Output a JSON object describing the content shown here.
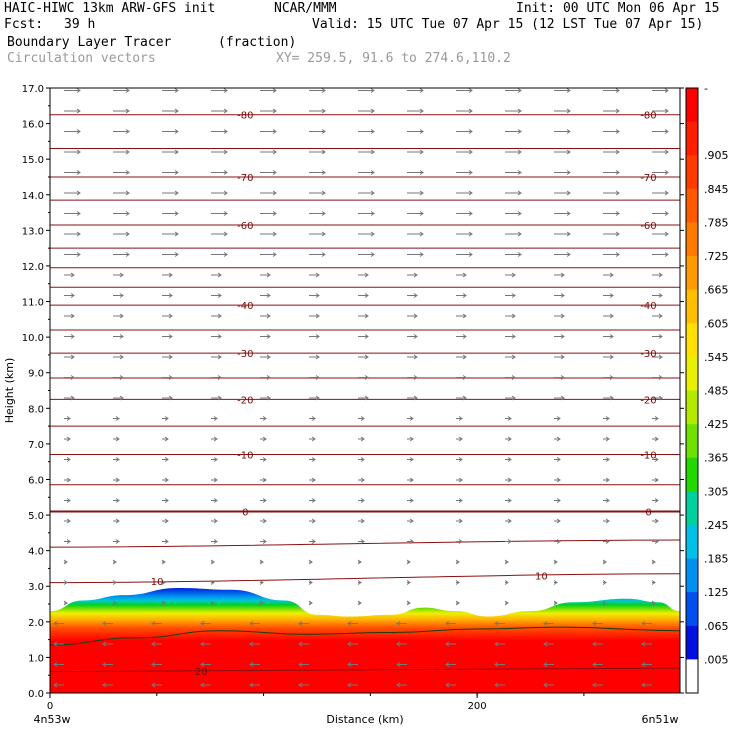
{
  "header": {
    "model": "HAIC-HIWC 13km ARW-GFS init",
    "org": "NCAR/MMM",
    "init": "Init: 00 UTC Mon 06 Apr 15",
    "fcst_label": "Fcst:",
    "fcst_value": "39 h",
    "valid": "Valid: 15 UTC Tue 07 Apr 15 (12 LST Tue 07 Apr 15)",
    "field": "Boundary Layer Tracer",
    "units": "(fraction)",
    "vectors": "Circulation vectors",
    "xy": "XY= 259.5, 91.6 to 274.6,110.2"
  },
  "chart_data": {
    "type": "heatmap",
    "title": "Boundary Layer Tracer",
    "xlabel": "Distance (km)",
    "ylabel": "Height (km)",
    "xlim": [
      0,
      295
    ],
    "ylim": [
      0,
      17
    ],
    "x_ticks": [
      {
        "value": 0,
        "label": "0"
      },
      {
        "value": 200,
        "label": "200"
      }
    ],
    "x_end_labels": {
      "left": "4n53w",
      "right": "6n51w"
    },
    "y_ticks": [
      "0.0",
      "1.0",
      "2.0",
      "3.0",
      "4.0",
      "5.0",
      "6.0",
      "7.0",
      "8.0",
      "9.0",
      "10.0",
      "11.0",
      "12.0",
      "13.0",
      "14.0",
      "15.0",
      "16.0",
      "17.0"
    ],
    "colorbar": {
      "labels": [
        "-",
        ".905",
        ".845",
        ".785",
        ".725",
        ".665",
        ".605",
        ".545",
        ".485",
        ".425",
        ".365",
        ".305",
        ".245",
        ".185",
        ".125",
        ".065",
        ".005"
      ],
      "colors": [
        "#ff0000",
        "#ff1e00",
        "#ff3c00",
        "#ff5a00",
        "#ff7a00",
        "#ff9a00",
        "#ffbe00",
        "#ffe000",
        "#e8f000",
        "#b4ea00",
        "#70e000",
        "#22d800",
        "#00d0a0",
        "#00c0e8",
        "#0090f0",
        "#0050f0",
        "#0010e0",
        "#ffffff"
      ]
    },
    "tracer_top_km": [
      {
        "x": 0,
        "y": 2.3
      },
      {
        "x": 15,
        "y": 2.6
      },
      {
        "x": 35,
        "y": 2.75
      },
      {
        "x": 60,
        "y": 2.95
      },
      {
        "x": 85,
        "y": 2.9
      },
      {
        "x": 110,
        "y": 2.6
      },
      {
        "x": 125,
        "y": 2.2
      },
      {
        "x": 140,
        "y": 2.15
      },
      {
        "x": 160,
        "y": 2.2
      },
      {
        "x": 175,
        "y": 2.4
      },
      {
        "x": 190,
        "y": 2.3
      },
      {
        "x": 205,
        "y": 2.15
      },
      {
        "x": 225,
        "y": 2.3
      },
      {
        "x": 245,
        "y": 2.55
      },
      {
        "x": 270,
        "y": 2.65
      },
      {
        "x": 285,
        "y": 2.55
      },
      {
        "x": 295,
        "y": 2.3
      }
    ],
    "mixed_top_km": [
      {
        "x": 0,
        "y": 1.35
      },
      {
        "x": 40,
        "y": 1.55
      },
      {
        "x": 80,
        "y": 1.75
      },
      {
        "x": 120,
        "y": 1.65
      },
      {
        "x": 160,
        "y": 1.7
      },
      {
        "x": 200,
        "y": 1.8
      },
      {
        "x": 240,
        "y": 1.85
      },
      {
        "x": 295,
        "y": 1.75
      }
    ],
    "isotherms": [
      {
        "label": "-80",
        "y": [
          16.25,
          16.25
        ]
      },
      {
        "label": "",
        "y": [
          15.3,
          15.3
        ]
      },
      {
        "label": "-70",
        "y": [
          14.5,
          14.5
        ]
      },
      {
        "label": "",
        "y": [
          13.85,
          13.85
        ]
      },
      {
        "label": "-60",
        "y": [
          13.15,
          13.15
        ]
      },
      {
        "label": "",
        "y": [
          12.5,
          12.5
        ]
      },
      {
        "label": "",
        "y": [
          11.95,
          11.95
        ]
      },
      {
        "label": "",
        "y": [
          11.4,
          11.4
        ]
      },
      {
        "label": "-40",
        "y": [
          10.9,
          10.9
        ]
      },
      {
        "label": "",
        "y": [
          10.2,
          10.2
        ]
      },
      {
        "label": "-30",
        "y": [
          9.55,
          9.55
        ]
      },
      {
        "label": "",
        "y": [
          8.85,
          8.85
        ]
      },
      {
        "label": "-20",
        "y": [
          8.25,
          8.25
        ]
      },
      {
        "label": "",
        "y": [
          7.5,
          7.5
        ]
      },
      {
        "label": "-10",
        "y": [
          6.7,
          6.7
        ]
      },
      {
        "label": "",
        "y": [
          5.85,
          5.85
        ]
      },
      {
        "label": "0",
        "y": [
          5.1,
          5.1
        ]
      },
      {
        "label": "",
        "y": [
          4.1,
          4.3
        ]
      },
      {
        "label": "10",
        "y": [
          3.1,
          3.35
        ]
      },
      {
        "label": "20",
        "y": [
          0.6,
          0.7
        ]
      }
    ]
  }
}
